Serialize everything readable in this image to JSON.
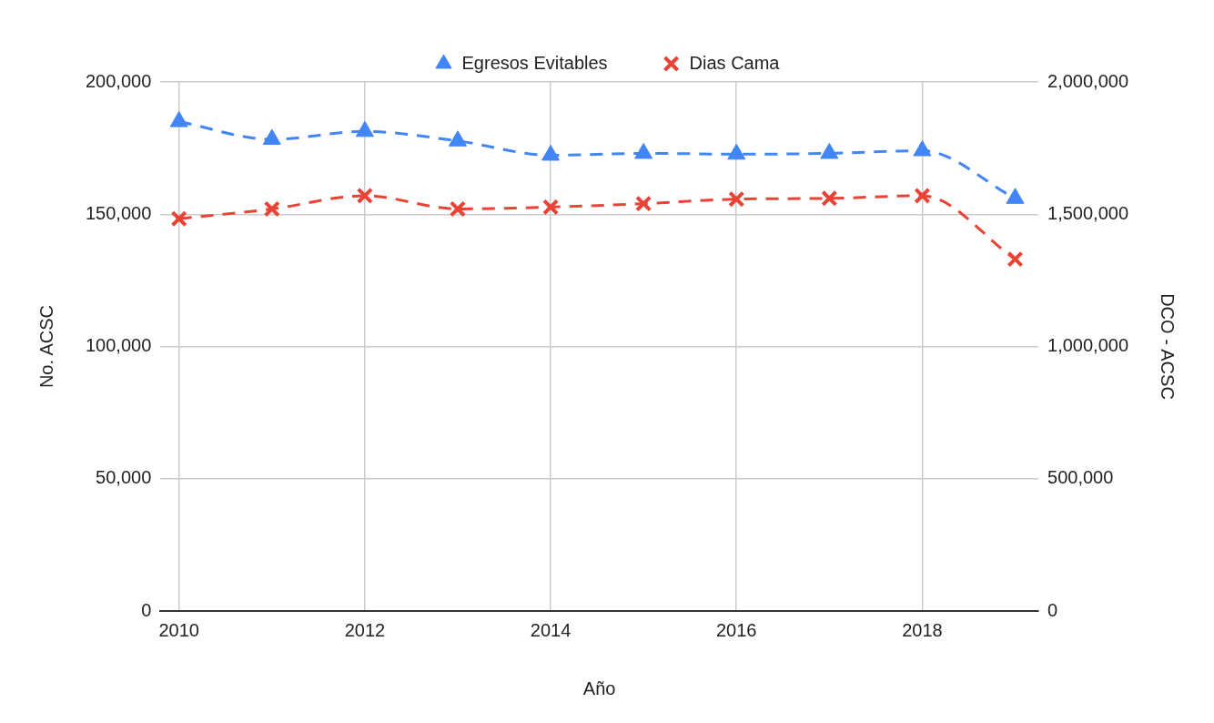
{
  "chart_data": {
    "type": "line",
    "xlabel": "Año",
    "ylabel": "No. ACSC",
    "y2label": "DCO - ACSC",
    "x": [
      2010,
      2011,
      2012,
      2013,
      2014,
      2015,
      2016,
      2017,
      2018,
      2019
    ],
    "series": [
      {
        "name": "Egresos Evitables",
        "color": "#4285f4",
        "marker": "triangle",
        "values": [
          185000,
          178300,
          181300,
          177700,
          172300,
          173000,
          172700,
          173000,
          174000,
          156000
        ]
      },
      {
        "name": "Dias Cama",
        "color": "#ea4335",
        "marker": "cross",
        "axis": "y2",
        "values": [
          1483000,
          1520000,
          1570000,
          1520000,
          1527000,
          1540000,
          1557000,
          1560000,
          1570000,
          1330000
        ]
      }
    ],
    "xlim": [
      2009.8,
      2019.25
    ],
    "xticks": [
      2010,
      2012,
      2014,
      2016,
      2018
    ],
    "ylim": [
      0,
      200000
    ],
    "yticks": [
      {
        "value": 0,
        "label": "0"
      },
      {
        "value": 50000,
        "label": "50,000"
      },
      {
        "value": 100000,
        "label": "100,000"
      },
      {
        "value": 150000,
        "label": "150,000"
      },
      {
        "value": 200000,
        "label": "200,000"
      }
    ],
    "y2lim": [
      0,
      2000000
    ],
    "y2ticks": [
      {
        "value": 0,
        "label": "0"
      },
      {
        "value": 500000,
        "label": "500,000"
      },
      {
        "value": 1000000,
        "label": "1,000,000"
      },
      {
        "value": 1500000,
        "label": "1,500,000"
      },
      {
        "value": 2000000,
        "label": "2,000,000"
      }
    ],
    "grid": true,
    "legend": "top",
    "line_style": "dashed"
  }
}
